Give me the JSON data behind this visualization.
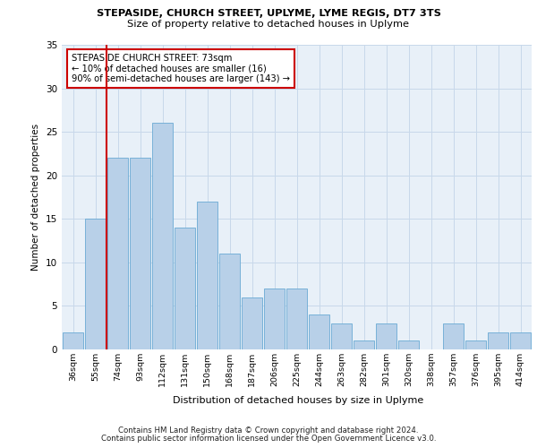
{
  "title1": "STEPASIDE, CHURCH STREET, UPLYME, LYME REGIS, DT7 3TS",
  "title2": "Size of property relative to detached houses in Uplyme",
  "xlabel": "Distribution of detached houses by size in Uplyme",
  "ylabel": "Number of detached properties",
  "categories": [
    "36sqm",
    "55sqm",
    "74sqm",
    "93sqm",
    "112sqm",
    "131sqm",
    "150sqm",
    "168sqm",
    "187sqm",
    "206sqm",
    "225sqm",
    "244sqm",
    "263sqm",
    "282sqm",
    "301sqm",
    "320sqm",
    "338sqm",
    "357sqm",
    "376sqm",
    "395sqm",
    "414sqm"
  ],
  "values": [
    2,
    15,
    22,
    22,
    26,
    14,
    17,
    11,
    6,
    7,
    7,
    4,
    3,
    1,
    3,
    1,
    0,
    3,
    1,
    2,
    2
  ],
  "bar_color": "#b8d0e8",
  "bar_edge_color": "#6aaad4",
  "grid_color": "#c8d8ea",
  "background_color": "#e8f0f8",
  "annotation_text": "STEPASIDE CHURCH STREET: 73sqm\n← 10% of detached houses are smaller (16)\n90% of semi-detached houses are larger (143) →",
  "vline_color": "#cc0000",
  "ylim": [
    0,
    35
  ],
  "yticks": [
    0,
    5,
    10,
    15,
    20,
    25,
    30,
    35
  ],
  "footer1": "Contains HM Land Registry data © Crown copyright and database right 2024.",
  "footer2": "Contains public sector information licensed under the Open Government Licence v3.0."
}
